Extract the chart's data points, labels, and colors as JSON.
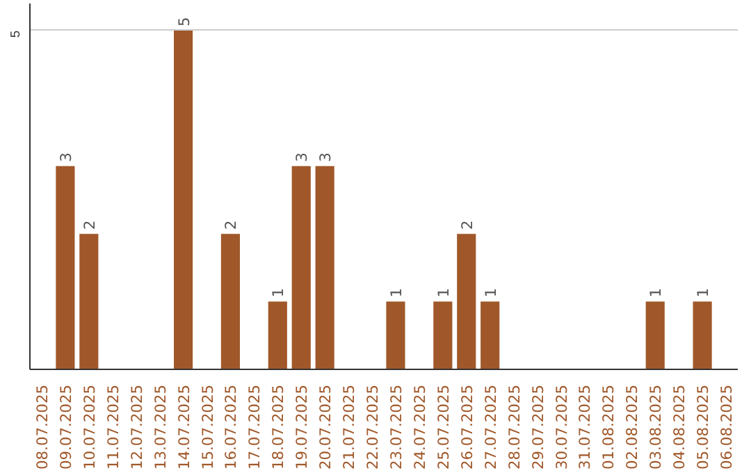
{
  "chart_data": {
    "type": "bar",
    "categories": [
      "08.07.2025",
      "09.07.2025",
      "10.07.2025",
      "11.07.2025",
      "12.07.2025",
      "13.07.2025",
      "14.07.2025",
      "15.07.2025",
      "16.07.2025",
      "17.07.2025",
      "18.07.2025",
      "19.07.2025",
      "20.07.2025",
      "21.07.2025",
      "22.07.2025",
      "23.07.2025",
      "24.07.2025",
      "25.07.2025",
      "26.07.2025",
      "27.07.2025",
      "28.07.2025",
      "29.07.2025",
      "30.07.2025",
      "31.07.2025",
      "01.08.2025",
      "02.08.2025",
      "03.08.2025",
      "04.08.2025",
      "05.08.2025",
      "06.08.2025"
    ],
    "values": [
      0,
      3,
      2,
      0,
      0,
      0,
      5,
      0,
      2,
      0,
      1,
      3,
      3,
      0,
      0,
      1,
      0,
      1,
      2,
      1,
      0,
      0,
      0,
      0,
      0,
      0,
      1,
      0,
      1,
      0
    ],
    "value_labels": [
      null,
      "3",
      "2",
      null,
      null,
      null,
      "5",
      null,
      "2",
      null,
      "1",
      "3",
      "3",
      null,
      null,
      "1",
      null,
      "1",
      "2",
      "1",
      null,
      null,
      null,
      null,
      null,
      null,
      "1",
      null,
      "1",
      null
    ],
    "color": "#a0582a",
    "ylim": [
      0,
      5.4
    ],
    "yticks": [
      5
    ],
    "grid": "y"
  }
}
